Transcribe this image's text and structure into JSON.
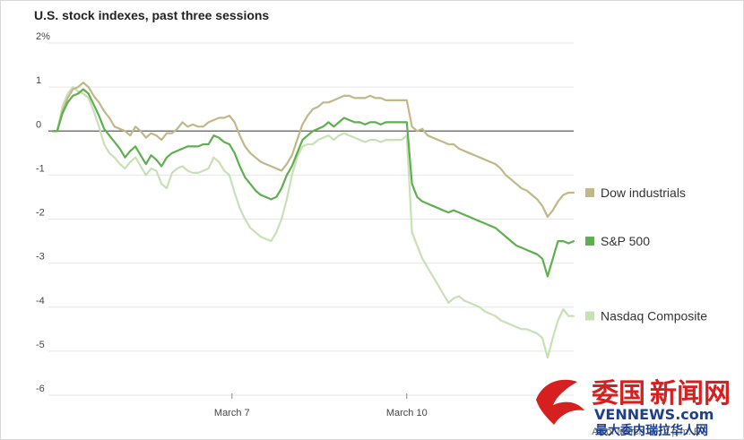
{
  "title": "U.S. stock indexes, past three sessions",
  "footnote": "As of March 10, 4 p.m. ET",
  "watermark": {
    "line1_a": "委国",
    "line1_b": "新闻网",
    "line2": "VENNEWS.com",
    "line3": "最大委内瑞拉华人网"
  },
  "colors": {
    "dow": "#c2b788",
    "sp500": "#5fae50",
    "nasdaq": "#c6e2b5",
    "zero_line": "#777777",
    "grid": "#e6e6e6"
  },
  "chart_data": {
    "type": "line",
    "title": "U.S. stock indexes, past three sessions",
    "xlabel": "",
    "ylabel": "",
    "ylim": [
      -6,
      2
    ],
    "xlim": [
      0,
      100
    ],
    "y_ticks": [
      {
        "value": 2,
        "label": "2%"
      },
      {
        "value": 1,
        "label": "1"
      },
      {
        "value": 0,
        "label": "0"
      },
      {
        "value": -1,
        "label": "-1"
      },
      {
        "value": -2,
        "label": "-2"
      },
      {
        "value": -3,
        "label": "-3"
      },
      {
        "value": -4,
        "label": "-4"
      },
      {
        "value": -5,
        "label": "-5"
      },
      {
        "value": -6,
        "label": "-6"
      }
    ],
    "x_ticks": [
      {
        "value": 34.5,
        "label": "March 7"
      },
      {
        "value": 68.0,
        "label": "March 10"
      }
    ],
    "grid": true,
    "legend": "right",
    "series": [
      {
        "name": "Dow industrials",
        "key": "dow",
        "x": [
          0,
          1,
          2,
          3,
          4,
          5,
          6,
          7,
          8,
          9,
          10,
          11,
          12,
          13,
          14,
          15,
          16,
          17,
          18,
          19,
          20,
          21,
          22,
          23,
          24,
          25,
          26,
          27,
          28,
          29,
          30,
          31,
          32,
          33,
          34,
          35,
          36,
          37,
          38,
          39,
          40,
          41,
          42,
          43,
          44,
          45,
          46,
          47,
          48,
          49,
          50,
          51,
          52,
          53,
          54,
          55,
          56,
          57,
          58,
          59,
          60,
          61,
          62,
          63,
          64,
          65,
          66,
          67,
          68,
          69,
          70,
          71,
          72,
          73,
          74,
          75,
          76,
          77,
          78,
          79,
          80,
          81,
          82,
          83,
          84,
          85,
          86,
          87,
          88,
          89,
          90,
          91,
          92,
          93,
          94,
          95,
          96,
          97,
          98,
          99,
          100
        ],
        "values": [
          0,
          0,
          0.45,
          0.75,
          0.95,
          1.0,
          1.1,
          1.0,
          0.8,
          0.65,
          0.45,
          0.3,
          0.1,
          0.05,
          0.0,
          -0.1,
          0.1,
          0.0,
          -0.15,
          -0.05,
          -0.1,
          -0.2,
          -0.05,
          -0.05,
          0.05,
          0.2,
          0.1,
          0.15,
          0.1,
          0.1,
          0.2,
          0.25,
          0.3,
          0.3,
          0.35,
          0.2,
          -0.1,
          -0.35,
          -0.5,
          -0.6,
          -0.7,
          -0.75,
          -0.8,
          -0.85,
          -0.9,
          -0.75,
          -0.55,
          -0.2,
          0.15,
          0.35,
          0.5,
          0.55,
          0.65,
          0.65,
          0.7,
          0.75,
          0.8,
          0.8,
          0.75,
          0.75,
          0.75,
          0.8,
          0.75,
          0.75,
          0.7,
          0.7,
          0.7,
          0.7,
          0.7,
          0.1,
          0.0,
          0.05,
          -0.1,
          -0.15,
          -0.2,
          -0.25,
          -0.3,
          -0.3,
          -0.4,
          -0.45,
          -0.5,
          -0.55,
          -0.6,
          -0.65,
          -0.7,
          -0.75,
          -0.85,
          -1.0,
          -1.1,
          -1.2,
          -1.3,
          -1.35,
          -1.45,
          -1.55,
          -1.7,
          -1.95,
          -1.8,
          -1.6,
          -1.45,
          -1.4,
          -1.4
        ]
      },
      {
        "name": "S&P 500",
        "key": "sp500",
        "x": [
          0,
          1,
          2,
          3,
          4,
          5,
          6,
          7,
          8,
          9,
          10,
          11,
          12,
          13,
          14,
          15,
          16,
          17,
          18,
          19,
          20,
          21,
          22,
          23,
          24,
          25,
          26,
          27,
          28,
          29,
          30,
          31,
          32,
          33,
          34,
          35,
          36,
          37,
          38,
          39,
          40,
          41,
          42,
          43,
          44,
          45,
          46,
          47,
          48,
          49,
          50,
          51,
          52,
          53,
          54,
          55,
          56,
          57,
          58,
          59,
          60,
          61,
          62,
          63,
          64,
          65,
          66,
          67,
          68,
          69,
          70,
          71,
          72,
          73,
          74,
          75,
          76,
          77,
          78,
          79,
          80,
          81,
          82,
          83,
          84,
          85,
          86,
          87,
          88,
          89,
          90,
          91,
          92,
          93,
          94,
          95,
          96,
          97,
          98,
          99,
          100
        ],
        "values": [
          0,
          0,
          0.4,
          0.65,
          0.8,
          0.85,
          0.95,
          0.85,
          0.6,
          0.35,
          0.05,
          -0.1,
          -0.25,
          -0.4,
          -0.6,
          -0.45,
          -0.35,
          -0.55,
          -0.75,
          -0.55,
          -0.65,
          -0.8,
          -0.6,
          -0.5,
          -0.45,
          -0.4,
          -0.35,
          -0.35,
          -0.35,
          -0.3,
          -0.3,
          -0.1,
          -0.15,
          -0.25,
          -0.3,
          -0.5,
          -0.8,
          -1.05,
          -1.2,
          -1.35,
          -1.45,
          -1.5,
          -1.55,
          -1.5,
          -1.3,
          -1.0,
          -0.8,
          -0.5,
          -0.2,
          -0.1,
          0.0,
          0.05,
          0.1,
          0.2,
          0.1,
          0.2,
          0.3,
          0.25,
          0.2,
          0.2,
          0.15,
          0.2,
          0.2,
          0.15,
          0.2,
          0.2,
          0.2,
          0.2,
          0.2,
          -1.2,
          -1.5,
          -1.6,
          -1.65,
          -1.7,
          -1.75,
          -1.8,
          -1.85,
          -1.8,
          -1.85,
          -1.9,
          -1.95,
          -2.0,
          -2.05,
          -2.1,
          -2.15,
          -2.2,
          -2.3,
          -2.4,
          -2.5,
          -2.6,
          -2.65,
          -2.7,
          -2.75,
          -2.8,
          -2.9,
          -3.3,
          -2.9,
          -2.5,
          -2.5,
          -2.55,
          -2.5
        ]
      },
      {
        "name": "Nasdaq Composite",
        "key": "nasdaq",
        "x": [
          0,
          1,
          2,
          3,
          4,
          5,
          6,
          7,
          8,
          9,
          10,
          11,
          12,
          13,
          14,
          15,
          16,
          17,
          18,
          19,
          20,
          21,
          22,
          23,
          24,
          25,
          26,
          27,
          28,
          29,
          30,
          31,
          32,
          33,
          34,
          35,
          36,
          37,
          38,
          39,
          40,
          41,
          42,
          43,
          44,
          45,
          46,
          47,
          48,
          49,
          50,
          51,
          52,
          53,
          54,
          55,
          56,
          57,
          58,
          59,
          60,
          61,
          62,
          63,
          64,
          65,
          66,
          67,
          68,
          69,
          70,
          71,
          72,
          73,
          74,
          75,
          76,
          77,
          78,
          79,
          80,
          81,
          82,
          83,
          84,
          85,
          86,
          87,
          88,
          89,
          90,
          91,
          92,
          93,
          94,
          95,
          96,
          97,
          98,
          99,
          100
        ],
        "values": [
          0,
          0,
          0.55,
          0.85,
          1.0,
          0.9,
          0.85,
          0.75,
          0.45,
          0.1,
          -0.3,
          -0.5,
          -0.6,
          -0.75,
          -0.85,
          -0.7,
          -0.6,
          -0.8,
          -1.0,
          -0.85,
          -0.9,
          -1.2,
          -1.3,
          -0.95,
          -0.85,
          -0.8,
          -0.9,
          -0.95,
          -0.95,
          -0.9,
          -0.85,
          -0.6,
          -0.7,
          -0.9,
          -1.0,
          -1.4,
          -1.75,
          -2.0,
          -2.2,
          -2.3,
          -2.4,
          -2.45,
          -2.5,
          -2.3,
          -2.0,
          -1.55,
          -1.0,
          -0.6,
          -0.35,
          -0.3,
          -0.3,
          -0.2,
          -0.15,
          -0.1,
          -0.2,
          -0.1,
          -0.05,
          -0.1,
          -0.15,
          -0.2,
          -0.25,
          -0.2,
          -0.2,
          -0.25,
          -0.2,
          -0.2,
          -0.2,
          -0.2,
          -0.1,
          -2.3,
          -2.6,
          -2.9,
          -3.1,
          -3.3,
          -3.5,
          -3.7,
          -3.9,
          -3.8,
          -3.75,
          -3.85,
          -3.9,
          -3.95,
          -4.0,
          -4.1,
          -4.15,
          -4.2,
          -4.3,
          -4.35,
          -4.4,
          -4.45,
          -4.5,
          -4.5,
          -4.55,
          -4.6,
          -4.7,
          -5.15,
          -4.7,
          -4.3,
          -4.05,
          -4.2,
          -4.2
        ]
      }
    ]
  }
}
